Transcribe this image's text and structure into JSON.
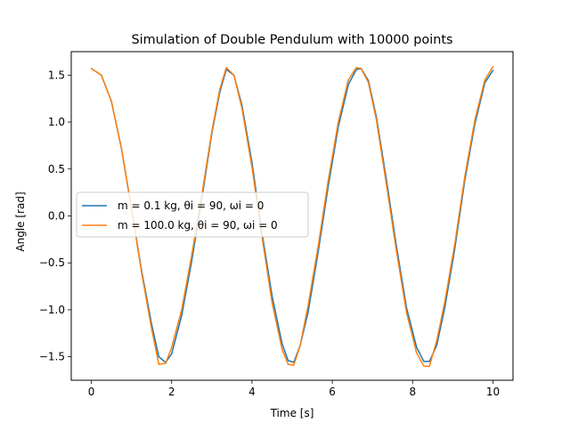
{
  "chart_data": {
    "type": "line",
    "title": "Simulation of Double Pendulum with 10000 points",
    "xlabel": "Time [s]",
    "ylabel": "Angle [rad]",
    "xlim": [
      -0.5,
      10.5
    ],
    "ylim": [
      -1.75,
      1.75
    ],
    "xticks": [
      0,
      2,
      4,
      6,
      8,
      10
    ],
    "xtick_labels": [
      "0",
      "2",
      "4",
      "6",
      "8",
      "10"
    ],
    "yticks": [
      -1.5,
      -1.0,
      -0.5,
      0.0,
      0.5,
      1.0,
      1.5
    ],
    "ytick_labels": [
      "−1.5",
      "−1.0",
      "−0.5",
      "0.0",
      "0.5",
      "1.0",
      "1.5"
    ],
    "grid": false,
    "legend_position": "center-left",
    "series": [
      {
        "name": "m = 0.1 kg, θi = 90, ωi = 0",
        "color": "#1f77b4",
        "x": [
          0,
          0.25,
          0.5,
          0.75,
          1.0,
          1.25,
          1.5,
          1.68,
          1.85,
          2.0,
          2.25,
          2.5,
          2.75,
          3.0,
          3.2,
          3.36,
          3.55,
          3.75,
          4.0,
          4.25,
          4.5,
          4.75,
          4.9,
          5.04,
          5.2,
          5.4,
          5.65,
          5.9,
          6.15,
          6.4,
          6.6,
          6.72,
          6.9,
          7.1,
          7.35,
          7.6,
          7.85,
          8.1,
          8.28,
          8.42,
          8.6,
          8.8,
          9.05,
          9.3,
          9.55,
          9.8,
          10.0
        ],
        "y": [
          1.57,
          1.5,
          1.22,
          0.72,
          0.08,
          -0.58,
          -1.15,
          -1.5,
          -1.56,
          -1.47,
          -1.06,
          -0.48,
          0.18,
          0.88,
          1.32,
          1.56,
          1.5,
          1.18,
          0.57,
          -0.18,
          -0.85,
          -1.36,
          -1.54,
          -1.56,
          -1.38,
          -1.02,
          -0.38,
          0.32,
          0.95,
          1.4,
          1.56,
          1.57,
          1.44,
          1.05,
          0.38,
          -0.33,
          -0.98,
          -1.4,
          -1.55,
          -1.55,
          -1.38,
          -0.98,
          -0.35,
          0.38,
          0.98,
          1.42,
          1.55
        ]
      },
      {
        "name": "m = 100.0 kg, θi = 90, ωi = 0",
        "color": "#ff7f0e",
        "x": [
          0,
          0.25,
          0.5,
          0.75,
          1.0,
          1.25,
          1.5,
          1.68,
          1.85,
          2.0,
          2.25,
          2.5,
          2.75,
          3.0,
          3.2,
          3.36,
          3.55,
          3.75,
          4.0,
          4.25,
          4.5,
          4.75,
          4.9,
          5.04,
          5.2,
          5.4,
          5.65,
          5.9,
          6.15,
          6.4,
          6.6,
          6.72,
          6.9,
          7.1,
          7.35,
          7.6,
          7.85,
          8.1,
          8.28,
          8.42,
          8.6,
          8.8,
          9.05,
          9.3,
          9.55,
          9.8,
          10.0
        ],
        "y": [
          1.57,
          1.5,
          1.22,
          0.72,
          0.08,
          -0.6,
          -1.2,
          -1.58,
          -1.57,
          -1.4,
          -1.0,
          -0.42,
          0.22,
          0.9,
          1.35,
          1.58,
          1.5,
          1.15,
          0.52,
          -0.22,
          -0.92,
          -1.42,
          -1.58,
          -1.59,
          -1.38,
          -0.95,
          -0.32,
          0.38,
          1.0,
          1.45,
          1.58,
          1.57,
          1.42,
          1.02,
          0.33,
          -0.38,
          -1.03,
          -1.46,
          -1.6,
          -1.6,
          -1.33,
          -0.92,
          -0.3,
          0.42,
          1.02,
          1.45,
          1.59
        ]
      }
    ]
  }
}
